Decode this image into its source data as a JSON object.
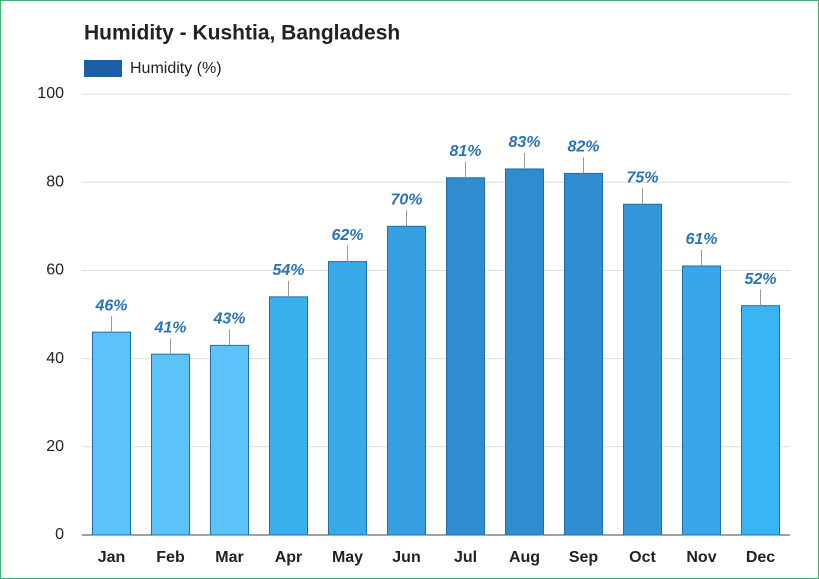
{
  "chart_data": {
    "type": "bar",
    "title": "Humidity - Kushtia, Bangladesh",
    "categories": [
      "Jan",
      "Feb",
      "Mar",
      "Apr",
      "May",
      "Jun",
      "Jul",
      "Aug",
      "Sep",
      "Oct",
      "Nov",
      "Dec"
    ],
    "series": [
      {
        "name": "Humidity (%)",
        "color": "#1d5fa6",
        "values": [
          46,
          41,
          43,
          54,
          62,
          70,
          81,
          83,
          82,
          75,
          61,
          52
        ],
        "value_labels": [
          "46%",
          "41%",
          "43%",
          "54%",
          "62%",
          "70%",
          "81%",
          "83%",
          "82%",
          "75%",
          "61%",
          "52%"
        ],
        "colors": [
          "#5bc3f7",
          "#5bc3f7",
          "#5bc3f7",
          "#38b1ee",
          "#38aaea",
          "#369fe2",
          "#2e8ccf",
          "#2e8ccf",
          "#2e8ccf",
          "#3497dc",
          "#38a6e8",
          "#38b5f2"
        ]
      }
    ],
    "ylim": [
      0,
      100
    ],
    "yticks": [
      0,
      20,
      40,
      60,
      80,
      100
    ],
    "grid": true
  }
}
